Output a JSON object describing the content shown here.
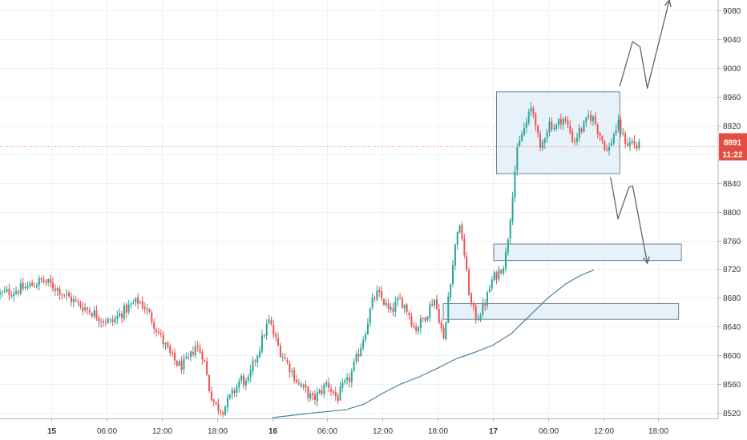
{
  "chart_data": {
    "type": "candlestick",
    "title": "",
    "xlabel": "",
    "ylabel": "",
    "ylim": [
      8512,
      9095
    ],
    "y_ticks": [
      8520,
      8560,
      8600,
      8640,
      8680,
      8720,
      8760,
      8800,
      8840,
      8880,
      8920,
      8960,
      9000,
      9040,
      9080
    ],
    "x_range_hours": [
      -5.6,
      72.5
    ],
    "x_ticks": [
      {
        "label": "15",
        "hour": 0,
        "bold": true
      },
      {
        "label": "06:00",
        "hour": 6,
        "bold": false
      },
      {
        "label": "12:00",
        "hour": 12,
        "bold": false
      },
      {
        "label": "18:00",
        "hour": 18,
        "bold": false
      },
      {
        "label": "16",
        "hour": 24,
        "bold": true
      },
      {
        "label": "06:00",
        "hour": 30,
        "bold": false
      },
      {
        "label": "12:00",
        "hour": 36,
        "bold": false
      },
      {
        "label": "18:00",
        "hour": 42,
        "bold": false
      },
      {
        "label": "17",
        "hour": 48,
        "bold": true
      },
      {
        "label": "06:00",
        "hour": 54,
        "bold": false
      },
      {
        "label": "12:00",
        "hour": 60,
        "bold": false
      },
      {
        "label": "18:00",
        "hour": 66,
        "bold": false
      }
    ],
    "grid": true,
    "current_price": {
      "value": 8891,
      "label": "8891",
      "countdown": "11:22"
    },
    "close_path": [
      [
        -5.6,
        8685
      ],
      [
        -4,
        8690
      ],
      [
        -2.5,
        8696
      ],
      [
        -1,
        8704
      ],
      [
        0.5,
        8694
      ],
      [
        1.5,
        8684
      ],
      [
        2.8,
        8672
      ],
      [
        4.2,
        8662
      ],
      [
        5.3,
        8652
      ],
      [
        6.5,
        8645
      ],
      [
        7.5,
        8658
      ],
      [
        8.5,
        8668
      ],
      [
        9.5,
        8676
      ],
      [
        10.2,
        8666
      ],
      [
        11,
        8648
      ],
      [
        12,
        8622
      ],
      [
        13,
        8598
      ],
      [
        14,
        8584
      ],
      [
        15,
        8594
      ],
      [
        15.6,
        8614
      ],
      [
        16.5,
        8600
      ],
      [
        17.2,
        8550
      ],
      [
        17.8,
        8530
      ],
      [
        18.6,
        8524
      ],
      [
        19.3,
        8538
      ],
      [
        20,
        8553
      ],
      [
        20.6,
        8568
      ],
      [
        21.3,
        8558
      ],
      [
        22,
        8590
      ],
      [
        22.7,
        8613
      ],
      [
        23.3,
        8638
      ],
      [
        23.7,
        8648
      ],
      [
        24.2,
        8627
      ],
      [
        24.8,
        8608
      ],
      [
        25.5,
        8592
      ],
      [
        26.2,
        8576
      ],
      [
        27,
        8558
      ],
      [
        27.8,
        8548
      ],
      [
        28.4,
        8538
      ],
      [
        29.2,
        8548
      ],
      [
        30,
        8562
      ],
      [
        30.5,
        8550
      ],
      [
        31.1,
        8540
      ],
      [
        31.7,
        8556
      ],
      [
        32.3,
        8564
      ],
      [
        33,
        8588
      ],
      [
        33.6,
        8612
      ],
      [
        34.2,
        8638
      ],
      [
        34.8,
        8670
      ],
      [
        35.3,
        8686
      ],
      [
        36.1,
        8676
      ],
      [
        36.8,
        8658
      ],
      [
        37.4,
        8670
      ],
      [
        38,
        8677
      ],
      [
        38.8,
        8661
      ],
      [
        39.5,
        8636
      ],
      [
        40.2,
        8646
      ],
      [
        40.9,
        8661
      ],
      [
        41.6,
        8680
      ],
      [
        42.2,
        8650
      ],
      [
        42.7,
        8616
      ],
      [
        43.2,
        8690
      ],
      [
        43.7,
        8731
      ],
      [
        44.2,
        8782
      ],
      [
        44.7,
        8763
      ],
      [
        45.2,
        8706
      ],
      [
        45.7,
        8666
      ],
      [
        46.2,
        8652
      ],
      [
        46.8,
        8663
      ],
      [
        47.4,
        8682
      ],
      [
        47.9,
        8704
      ],
      [
        48.6,
        8716
      ],
      [
        49.3,
        8730
      ],
      [
        49.8,
        8782
      ],
      [
        50.2,
        8835
      ],
      [
        50.6,
        8880
      ],
      [
        51.1,
        8906
      ],
      [
        51.7,
        8925
      ],
      [
        52.2,
        8945
      ],
      [
        52.7,
        8925
      ],
      [
        53.1,
        8880
      ],
      [
        53.6,
        8906
      ],
      [
        54.2,
        8925
      ],
      [
        54.8,
        8916
      ],
      [
        55.5,
        8932
      ],
      [
        56.2,
        8918
      ],
      [
        56.8,
        8897
      ],
      [
        57.4,
        8912
      ],
      [
        58,
        8920
      ],
      [
        58.5,
        8935
      ],
      [
        59,
        8928
      ],
      [
        59.5,
        8912
      ],
      [
        60,
        8897
      ],
      [
        60.5,
        8882
      ],
      [
        61,
        8904
      ],
      [
        61.6,
        8922
      ],
      [
        62.1,
        8905
      ],
      [
        62.7,
        8894
      ],
      [
        63.2,
        8898
      ],
      [
        63.6,
        8890
      ],
      [
        64,
        8891
      ]
    ],
    "annotations": [
      {
        "type": "box",
        "name": "consolidation-range",
        "x": [
          48.4,
          61.8
        ],
        "y": [
          8853,
          8967
        ]
      },
      {
        "type": "box",
        "name": "support-zone-upper",
        "x": [
          48.1,
          68.5
        ],
        "y": [
          8732,
          8755
        ]
      },
      {
        "type": "box",
        "name": "support-zone-lower",
        "x": [
          42.6,
          68.2
        ],
        "y": [
          8650,
          8672
        ]
      },
      {
        "type": "arrow",
        "name": "bullish-scenario-arrow",
        "points": [
          [
            61.8,
            8975
          ],
          [
            63.2,
            9037
          ],
          [
            64,
            9030
          ],
          [
            64.8,
            8972
          ],
          [
            67.2,
            9095
          ]
        ]
      },
      {
        "type": "arrow",
        "name": "bearish-scenario-arrow",
        "points": [
          [
            60.8,
            8848
          ],
          [
            61.6,
            8790
          ],
          [
            62.8,
            8834
          ],
          [
            63.2,
            8836
          ],
          [
            64.8,
            8728
          ]
        ]
      }
    ],
    "ma_line": {
      "name": "moving-average",
      "points": [
        [
          24,
          8513
        ],
        [
          28,
          8519
        ],
        [
          32,
          8524
        ],
        [
          34,
          8532
        ],
        [
          36,
          8547
        ],
        [
          38,
          8560
        ],
        [
          40,
          8570
        ],
        [
          42,
          8582
        ],
        [
          44,
          8595
        ],
        [
          46,
          8604
        ],
        [
          48,
          8614
        ],
        [
          50,
          8630
        ],
        [
          52,
          8655
        ],
        [
          54,
          8680
        ],
        [
          56,
          8700
        ],
        [
          57.5,
          8711
        ],
        [
          59,
          8719
        ]
      ]
    },
    "colors": {
      "up": "#26a69a",
      "down": "#ef5350",
      "grid": "#eef1f4",
      "ma": "#4f7f9c",
      "box_fill": "#e3eef8",
      "box_stroke": "#6f8092",
      "annotation": "#5b6570",
      "price_line": "#f26d5f",
      "price_tag": "#e24e3f",
      "axis_text": "#333333",
      "axis_line": "#b2b5be"
    }
  }
}
